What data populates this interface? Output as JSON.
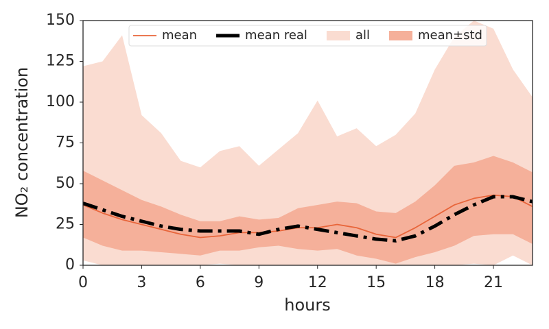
{
  "chart_data": {
    "type": "line",
    "xlabel": "hours",
    "ylabel": "NO₂ concentration",
    "x": [
      0,
      1,
      2,
      3,
      4,
      5,
      6,
      7,
      8,
      9,
      10,
      11,
      12,
      13,
      14,
      15,
      16,
      17,
      18,
      19,
      20,
      21,
      22,
      23
    ],
    "xlim": [
      0,
      23
    ],
    "ylim": [
      0,
      150
    ],
    "xticks": [
      0,
      3,
      6,
      9,
      12,
      15,
      18,
      21
    ],
    "yticks": [
      0,
      25,
      50,
      75,
      100,
      125,
      150
    ],
    "legend": "upper center",
    "series": [
      {
        "name": "mean",
        "color": "#e8653a",
        "style": "solid",
        "values": [
          37,
          32,
          28,
          25,
          22,
          19,
          17,
          18,
          20,
          20,
          21,
          23,
          23,
          25,
          23,
          19,
          17,
          23,
          30,
          37,
          41,
          43,
          42,
          36
        ]
      },
      {
        "name": "mean real",
        "color": "#000000",
        "style": "dashdot",
        "values": [
          38,
          34,
          30,
          27,
          24,
          22,
          21,
          21,
          21,
          19,
          22,
          24,
          22,
          20,
          18,
          16,
          15,
          18,
          24,
          31,
          37,
          42,
          42,
          39
        ]
      }
    ],
    "bands": [
      {
        "name": "all",
        "color": "#fadcd1",
        "upper": [
          122,
          125,
          141,
          92,
          81,
          64,
          60,
          70,
          73,
          61,
          71,
          81,
          101,
          79,
          84,
          73,
          80,
          93,
          120,
          140,
          150,
          145,
          120,
          103
        ],
        "lower": [
          3,
          0,
          0,
          0,
          0,
          0,
          0,
          1,
          0,
          0,
          0,
          0,
          0,
          0,
          0,
          0,
          0,
          0,
          0,
          0,
          1,
          0,
          6,
          0
        ]
      },
      {
        "name": "mean±std",
        "color": "#f5b09a",
        "upper": [
          58,
          52,
          46,
          40,
          36,
          31,
          27,
          27,
          30,
          28,
          29,
          35,
          37,
          39,
          38,
          33,
          32,
          39,
          49,
          61,
          63,
          67,
          63,
          57
        ],
        "lower": [
          17,
          12,
          9,
          9,
          8,
          7,
          6,
          9,
          9,
          11,
          12,
          10,
          9,
          10,
          6,
          4,
          1,
          5,
          8,
          12,
          18,
          19,
          19,
          13
        ]
      }
    ]
  }
}
